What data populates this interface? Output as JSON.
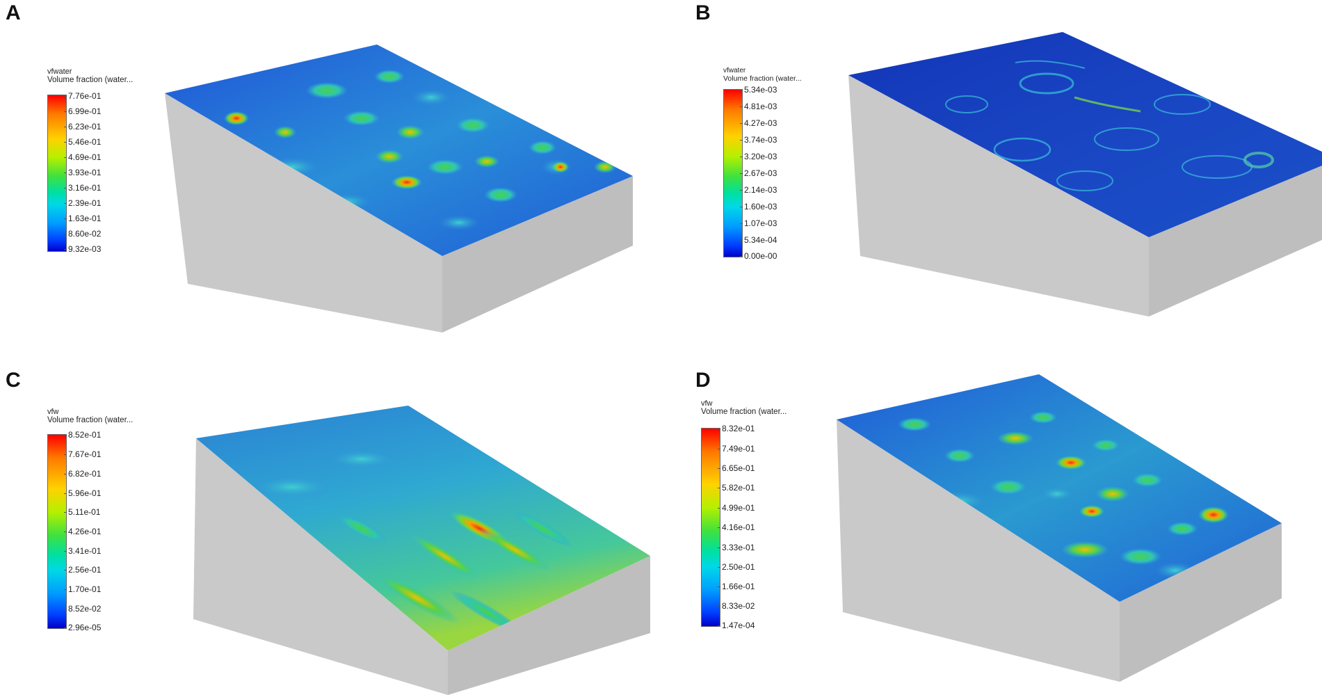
{
  "panels": [
    {
      "letter": "A",
      "legend": {
        "name": "vfwater",
        "description": "Volume fraction (water...",
        "ticks": [
          "7.76e-01",
          "6.99e-01",
          "6.23e-01",
          "5.46e-01",
          "4.69e-01",
          "3.93e-01",
          "3.16e-01",
          "2.39e-01",
          "1.63e-01",
          "8.60e-02",
          "9.32e-03"
        ]
      }
    },
    {
      "letter": "B",
      "legend": {
        "name": "vfwater",
        "description": "Volume fraction (water...",
        "ticks": [
          "5.34e-03",
          "4.81e-03",
          "4.27e-03",
          "3.74e-03",
          "3.20e-03",
          "2.67e-03",
          "2.14e-03",
          "1.60e-03",
          "1.07e-03",
          "5.34e-04",
          "0.00e-00"
        ]
      }
    },
    {
      "letter": "C",
      "legend": {
        "name": "vfw",
        "description": "Volume fraction (water...",
        "ticks": [
          "8.52e-01",
          "7.67e-01",
          "6.82e-01",
          "5.96e-01",
          "5.11e-01",
          "4.26e-01",
          "3.41e-01",
          "2.56e-01",
          "1.70e-01",
          "8.52e-02",
          "2.96e-05"
        ]
      }
    },
    {
      "letter": "D",
      "legend": {
        "name": "vfw",
        "description": "Volume fraction (water...",
        "ticks": [
          "8.32e-01",
          "7.49e-01",
          "6.65e-01",
          "5.82e-01",
          "4.99e-01",
          "4.16e-01",
          "3.33e-01",
          "2.50e-01",
          "1.66e-01",
          "8.33e-02",
          "1.47e-04"
        ]
      }
    }
  ],
  "colors": {
    "block_side": "#c8c8c8",
    "block_front": "#bdbdbd",
    "low": "#1a3fd6",
    "mid": "#35c7c9",
    "green": "#3fcf4a",
    "high": "#e8321a"
  }
}
